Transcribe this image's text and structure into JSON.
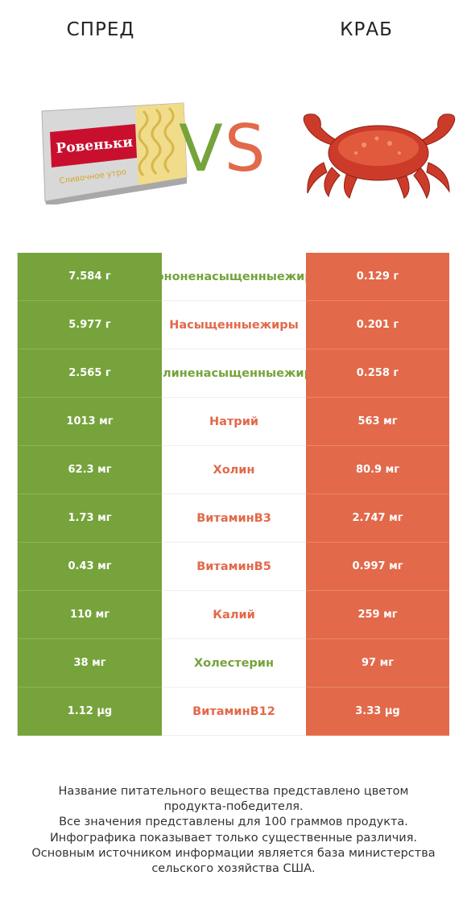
{
  "header": {
    "left_title": "СПРЕД",
    "right_title": "КРАБ",
    "vs_v": "V",
    "vs_s": "S",
    "left_image_icon": "spread-package-image",
    "right_image_icon": "crab-image",
    "left_package_brand": "Ровеньки",
    "left_package_text": "Сливочное утро"
  },
  "colors": {
    "left": "#76a33b",
    "right": "#e2694a"
  },
  "chart_data": {
    "type": "table",
    "columns": [
      "Спред",
      "Краб"
    ],
    "rows": [
      {
        "nutrient": "Мононенасыщенные жиры",
        "left": "7.584 г",
        "right": "0.129 г",
        "winner": "left"
      },
      {
        "nutrient": "Насыщенные жиры",
        "left": "5.977 г",
        "right": "0.201 г",
        "winner": "right"
      },
      {
        "nutrient": "Полиненасыщенные жиры",
        "left": "2.565 г",
        "right": "0.258 г",
        "winner": "left"
      },
      {
        "nutrient": "Натрий",
        "left": "1013 мг",
        "right": "563 мг",
        "winner": "right"
      },
      {
        "nutrient": "Холин",
        "left": "62.3 мг",
        "right": "80.9 мг",
        "winner": "right"
      },
      {
        "nutrient": "Витамин B3",
        "left": "1.73 мг",
        "right": "2.747 мг",
        "winner": "right"
      },
      {
        "nutrient": "Витамин B5",
        "left": "0.43 мг",
        "right": "0.997 мг",
        "winner": "right"
      },
      {
        "nutrient": "Калий",
        "left": "110 мг",
        "right": "259 мг",
        "winner": "right"
      },
      {
        "nutrient": "Холестерин",
        "left": "38 мг",
        "right": "97 мг",
        "winner": "left"
      },
      {
        "nutrient": "Витамин B12",
        "left": "1.12 µg",
        "right": "3.33 µg",
        "winner": "right"
      }
    ]
  },
  "footer": {
    "lines": [
      "Название питательного вещества представлено цветом",
      "продукта-победителя.",
      "Все значения представлены для 100 граммов продукта.",
      "Инфографика показывает только существенные различия.",
      "Основным источником информации является база министерства",
      "сельского хозяйства США."
    ]
  }
}
